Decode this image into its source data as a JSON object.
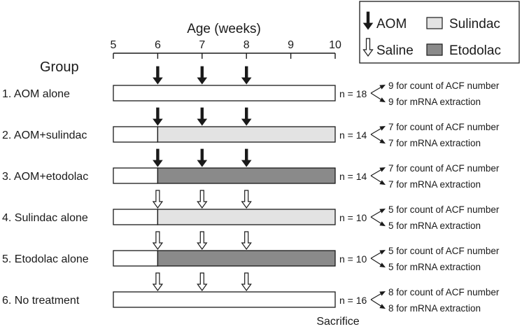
{
  "axis": {
    "title": "Age (weeks)",
    "ticks": [
      5,
      6,
      7,
      8,
      9,
      10
    ],
    "range": [
      5,
      10
    ]
  },
  "group_header": "Group",
  "sacrifice_label": "Sacrifice",
  "legend": {
    "aom": {
      "label": "AOM",
      "icon": "filled-down-arrow"
    },
    "saline": {
      "label": "Saline",
      "icon": "open-down-arrow"
    },
    "sulindac": {
      "label": "Sulindac",
      "color": "#e3e3e3"
    },
    "etodolac": {
      "label": "Etodolac",
      "color": "#8a8a8a"
    }
  },
  "colors": {
    "none": "#ffffff",
    "sulindac": "#e3e3e3",
    "etodolac": "#8a8a8a",
    "aom_arrow": "#1a1a1a",
    "saline_arrow": "#ffffff"
  },
  "groups": [
    {
      "label": "1. AOM alone",
      "injection": "aom",
      "injection_weeks": [
        6,
        7,
        8
      ],
      "drug": null,
      "drug_start": 6,
      "n": "n = 18",
      "split": [
        "9 for count of ACF number",
        "9 for mRNA extraction"
      ]
    },
    {
      "label": "2. AOM+sulindac",
      "injection": "aom",
      "injection_weeks": [
        6,
        7,
        8
      ],
      "drug": "sulindac",
      "drug_start": 6,
      "n": "n = 14",
      "split": [
        "7 for count of ACF number",
        "7 for mRNA extraction"
      ]
    },
    {
      "label": "3. AOM+etodolac",
      "injection": "aom",
      "injection_weeks": [
        6,
        7,
        8
      ],
      "drug": "etodolac",
      "drug_start": 6,
      "n": "n = 14",
      "split": [
        "7 for count of ACF number",
        "7 for mRNA extraction"
      ]
    },
    {
      "label": "4. Sulindac alone",
      "injection": "saline",
      "injection_weeks": [
        6,
        7,
        8
      ],
      "drug": "sulindac",
      "drug_start": 6,
      "n": "n = 10",
      "split": [
        "5 for count of ACF number",
        "5 for mRNA extraction"
      ]
    },
    {
      "label": "5. Etodolac alone",
      "injection": "saline",
      "injection_weeks": [
        6,
        7,
        8
      ],
      "drug": "etodolac",
      "drug_start": 6,
      "n": "n = 10",
      "split": [
        "5 for count of ACF number",
        "5 for mRNA extraction"
      ]
    },
    {
      "label": "6. No treatment",
      "injection": "saline",
      "injection_weeks": [
        6,
        7,
        8
      ],
      "drug": null,
      "drug_start": 6,
      "n": "n = 16",
      "split": [
        "8 for count of ACF number",
        "8 for mRNA extraction"
      ]
    }
  ]
}
